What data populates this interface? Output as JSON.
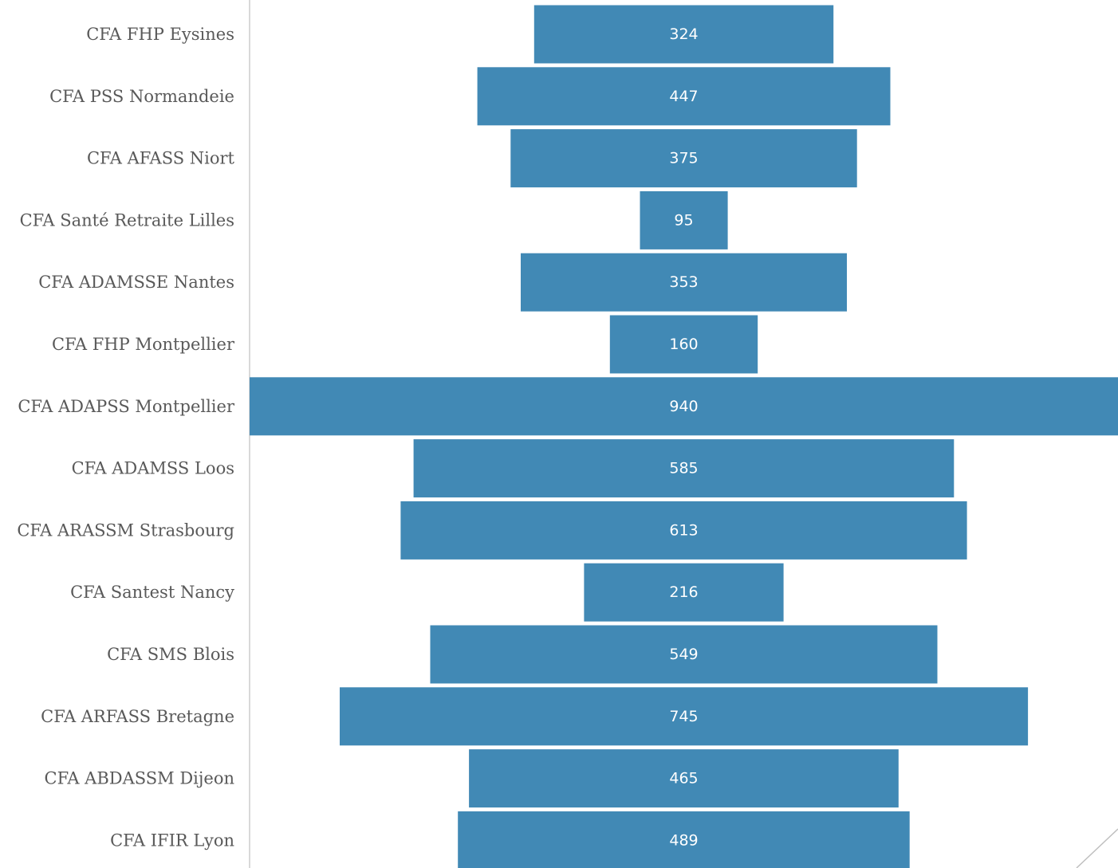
{
  "chart_data": {
    "type": "bar",
    "orientation": "horizontal",
    "style": "funnel (bars centered)",
    "categories": [
      "CFA FHP Eysines",
      "CFA PSS Normandeie",
      "CFA AFASS Niort",
      "CFA Santé Retraite Lilles",
      "CFA ADAMSSE Nantes",
      "CFA FHP Montpellier",
      "CFA ADAPSS Montpellier",
      "CFA ADAMSS Loos",
      "CFA ARASSM Strasbourg",
      "CFA Santest Nancy",
      "CFA SMS Blois",
      "CFA ARFASS Bretagne",
      "CFA ABDASSM Dijeon",
      "CFA IFIR Lyon"
    ],
    "values": [
      324,
      447,
      375,
      95,
      353,
      160,
      940,
      585,
      613,
      216,
      549,
      745,
      465,
      489
    ],
    "data_labels": [
      "324",
      "447",
      "375",
      "95",
      "353",
      "160",
      "940",
      "585",
      "613",
      "216",
      "549",
      "745",
      "465",
      "489"
    ],
    "xlim": [
      0,
      940
    ],
    "grid": false,
    "legend": "none",
    "colors": {
      "bar": "#4189B5",
      "bar_label": "#FFFFFF",
      "category_label": "#595959",
      "axis_line": "#D9D9D9",
      "background": "#FFFFFF"
    }
  }
}
